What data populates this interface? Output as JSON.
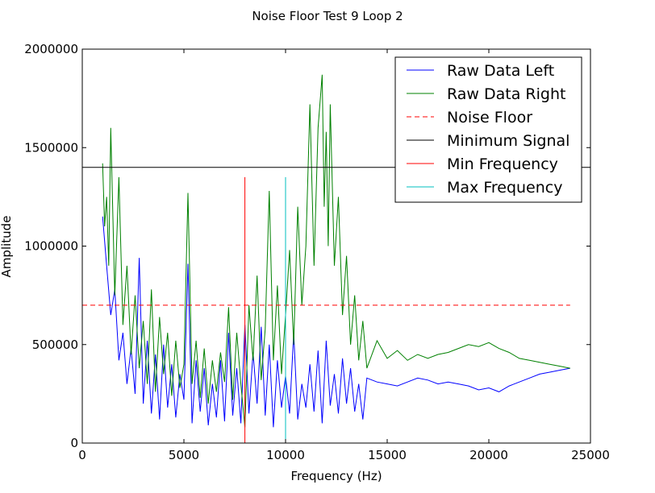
{
  "chart_data": {
    "type": "line",
    "title": "Noise Floor Test 9 Loop 2",
    "xlabel": "Frequency (Hz)",
    "ylabel": "Amplitude",
    "xlim": [
      0,
      25000
    ],
    "ylim": [
      0,
      2000000
    ],
    "x_ticks": [
      "0",
      "5000",
      "10000",
      "15000",
      "20000",
      "25000"
    ],
    "y_ticks": [
      "0",
      "500000",
      "1000000",
      "1500000",
      "2000000"
    ],
    "x_tick_values": [
      0,
      5000,
      10000,
      15000,
      20000,
      25000
    ],
    "y_tick_values": [
      0,
      500000,
      1000000,
      1500000,
      2000000
    ],
    "grid": false,
    "legend_position": "top-right",
    "series": [
      {
        "name": "Raw Data Left",
        "color": "#0000ff",
        "style": "solid",
        "x": [
          1000,
          1200,
          1400,
          1600,
          1800,
          2000,
          2200,
          2400,
          2600,
          2800,
          3000,
          3200,
          3400,
          3600,
          3800,
          4000,
          4200,
          4400,
          4600,
          4800,
          5000,
          5200,
          5400,
          5600,
          5800,
          6000,
          6200,
          6400,
          6600,
          6800,
          7000,
          7200,
          7400,
          7600,
          7800,
          8000,
          8200,
          8400,
          8600,
          8800,
          9000,
          9200,
          9400,
          9600,
          9800,
          10000,
          10200,
          10400,
          10600,
          10800,
          11000,
          11200,
          11400,
          11600,
          11800,
          12000,
          12200,
          12400,
          12600,
          12800,
          13000,
          13200,
          13400,
          13600,
          13800,
          14000,
          14500,
          15000,
          15500,
          16000,
          16500,
          17000,
          17500,
          18000,
          18500,
          19000,
          19500,
          20000,
          20500,
          21000,
          21500,
          22000,
          22500,
          23000,
          23500,
          24000
        ],
        "values": [
          1150000,
          900000,
          650000,
          780000,
          420000,
          560000,
          300000,
          480000,
          250000,
          940000,
          200000,
          520000,
          150000,
          450000,
          120000,
          500000,
          180000,
          400000,
          130000,
          350000,
          220000,
          910000,
          100000,
          420000,
          160000,
          380000,
          90000,
          300000,
          130000,
          420000,
          110000,
          560000,
          140000,
          380000,
          100000,
          600000,
          150000,
          460000,
          200000,
          590000,
          140000,
          500000,
          80000,
          420000,
          180000,
          340000,
          150000,
          560000,
          120000,
          300000,
          180000,
          400000,
          160000,
          470000,
          100000,
          520000,
          190000,
          350000,
          150000,
          430000,
          200000,
          380000,
          160000,
          300000,
          120000,
          330000,
          310000,
          300000,
          290000,
          310000,
          330000,
          320000,
          300000,
          310000,
          300000,
          290000,
          270000,
          280000,
          260000,
          290000,
          310000,
          330000,
          350000,
          360000,
          370000,
          380000
        ]
      },
      {
        "name": "Raw Data Right",
        "color": "#008000",
        "style": "solid",
        "x": [
          1000,
          1100,
          1200,
          1300,
          1400,
          1600,
          1800,
          2000,
          2200,
          2400,
          2600,
          2800,
          3000,
          3200,
          3400,
          3600,
          3800,
          4000,
          4200,
          4400,
          4600,
          4800,
          5000,
          5200,
          5400,
          5600,
          5800,
          6000,
          6200,
          6400,
          6600,
          6800,
          7000,
          7200,
          7400,
          7600,
          7800,
          8000,
          8200,
          8400,
          8600,
          8800,
          9000,
          9200,
          9400,
          9600,
          9800,
          10000,
          10200,
          10400,
          10600,
          10800,
          11000,
          11200,
          11400,
          11600,
          11800,
          11900,
          12000,
          12100,
          12200,
          12400,
          12600,
          12800,
          13000,
          13200,
          13400,
          13600,
          13800,
          14000,
          14500,
          15000,
          15500,
          16000,
          16500,
          17000,
          17500,
          18000,
          18500,
          19000,
          19500,
          20000,
          20500,
          21000,
          21500,
          22000,
          22500,
          23000,
          23500,
          24000
        ],
        "values": [
          1420000,
          1100000,
          1250000,
          900000,
          1600000,
          750000,
          1350000,
          600000,
          900000,
          450000,
          750000,
          380000,
          620000,
          300000,
          780000,
          260000,
          640000,
          350000,
          560000,
          240000,
          520000,
          280000,
          400000,
          1270000,
          300000,
          520000,
          230000,
          480000,
          200000,
          420000,
          260000,
          460000,
          310000,
          690000,
          220000,
          560000,
          300000,
          80000,
          700000,
          420000,
          850000,
          320000,
          580000,
          1280000,
          420000,
          800000,
          350000,
          650000,
          980000,
          500000,
          1200000,
          700000,
          1000000,
          1720000,
          900000,
          1600000,
          1870000,
          1200000,
          1580000,
          1000000,
          1720000,
          900000,
          1250000,
          650000,
          950000,
          500000,
          750000,
          420000,
          620000,
          380000,
          520000,
          430000,
          470000,
          420000,
          450000,
          430000,
          450000,
          460000,
          480000,
          500000,
          490000,
          510000,
          480000,
          460000,
          430000,
          420000,
          410000,
          400000,
          390000,
          380000
        ]
      },
      {
        "name": "Noise Floor",
        "color": "#ff0000",
        "style": "dashed",
        "x": [
          0,
          24000
        ],
        "values": [
          700000,
          700000
        ]
      },
      {
        "name": "Minimum Signal",
        "color": "#000000",
        "style": "solid",
        "x": [
          0,
          25000
        ],
        "values": [
          1400000,
          1400000
        ]
      },
      {
        "name": "Min Frequency",
        "color": "#ff0000",
        "style": "vertical",
        "x": [
          8000,
          8000
        ],
        "values": [
          0,
          1350000
        ]
      },
      {
        "name": "Max Frequency",
        "color": "#00bfbf",
        "style": "vertical",
        "x": [
          10000,
          10000
        ],
        "values": [
          0,
          1350000
        ]
      }
    ]
  }
}
